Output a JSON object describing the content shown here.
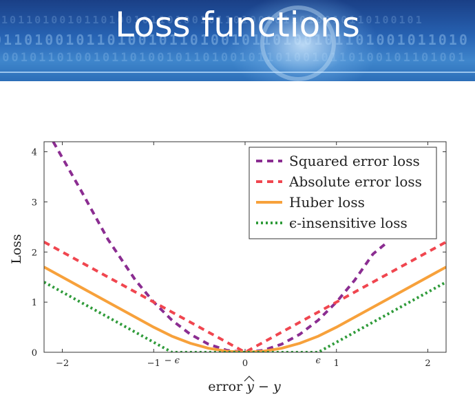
{
  "slide": {
    "title": "Loss functions"
  },
  "chart_data": {
    "type": "line",
    "ylabel": "Loss",
    "xlabel": "error ŷ − y",
    "xlabel_parts": {
      "prefix": "error ",
      "yhat": "y",
      "minus": " − ",
      "y": "y"
    },
    "xlim": [
      -2.2,
      2.2
    ],
    "ylim": [
      0,
      4.2
    ],
    "xticks": [
      -2,
      -1,
      0,
      1,
      2
    ],
    "xtick_labels": [
      "−2",
      "−1",
      "0",
      "1",
      "2"
    ],
    "yticks": [
      0,
      1,
      2,
      3,
      4
    ],
    "ytick_labels": [
      "0",
      "1",
      "2",
      "3",
      "4"
    ],
    "epsilon_labels": [
      {
        "x": -0.8,
        "text": "− ϵ"
      },
      {
        "x": 0.8,
        "text": "ϵ"
      }
    ],
    "grid": false,
    "legend_position": "top-right",
    "series": [
      {
        "name": "Squared error loss",
        "color": "#8b2d91",
        "dash": "dash",
        "x": [
          -2.1,
          -1.8,
          -1.5,
          -1.2,
          -1.0,
          -0.8,
          -0.6,
          -0.4,
          -0.2,
          0,
          0.2,
          0.4,
          0.6,
          0.8,
          1.0,
          1.2,
          1.4,
          1.56
        ],
        "y": [
          4.2,
          3.24,
          2.25,
          1.44,
          1.0,
          0.64,
          0.36,
          0.16,
          0.04,
          0,
          0.04,
          0.16,
          0.36,
          0.64,
          1.0,
          1.44,
          1.96,
          2.2
        ]
      },
      {
        "name": "Absolute error loss",
        "color": "#f0464f",
        "dash": "dash",
        "x": [
          -2.2,
          -1.0,
          0,
          1.0,
          2.2
        ],
        "y": [
          2.2,
          1.0,
          0,
          1.0,
          2.2
        ]
      },
      {
        "name": "Huber loss",
        "color": "#f7a13b",
        "dash": "solid",
        "x": [
          -2.2,
          -1.6,
          -1.2,
          -1.0,
          -0.8,
          -0.6,
          -0.4,
          -0.2,
          0,
          0.2,
          0.4,
          0.6,
          0.8,
          1.0,
          1.2,
          1.6,
          2.2
        ],
        "y": [
          1.7,
          1.1,
          0.7,
          0.5,
          0.32,
          0.18,
          0.08,
          0.02,
          0,
          0.02,
          0.08,
          0.18,
          0.32,
          0.5,
          0.7,
          1.1,
          1.7
        ]
      },
      {
        "name": "ϵ-insensitive loss",
        "color": "#2f9b3a",
        "dash": "dot",
        "x": [
          -2.2,
          -0.8,
          0.8,
          2.2
        ],
        "y": [
          1.4,
          0,
          0,
          1.4
        ]
      }
    ]
  }
}
